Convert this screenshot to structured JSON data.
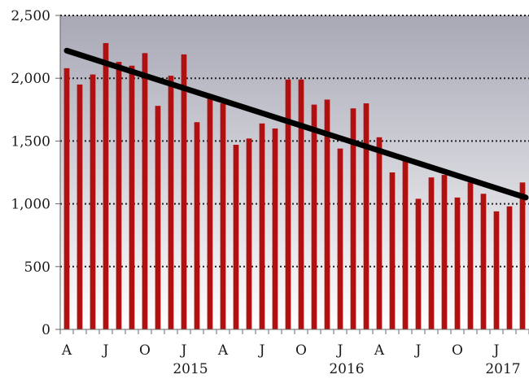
{
  "chart_data": {
    "type": "bar",
    "title": "",
    "xlabel": "",
    "ylabel": "",
    "ylim": [
      0,
      2500
    ],
    "y_ticks": [
      0,
      500,
      1000,
      1500,
      2000,
      2500
    ],
    "y_tick_labels": [
      "0",
      "500",
      "1,000",
      "1,500",
      "2,000",
      "2,500"
    ],
    "grid": "horizontal dotted",
    "background": {
      "top": "#a8a8b6",
      "bottom": "#ffffff"
    },
    "bar_color": "#b01010",
    "trend_color": "#000000",
    "x_tick_labels": [
      {
        "index": 0,
        "label": "A"
      },
      {
        "index": 3,
        "label": "J"
      },
      {
        "index": 6,
        "label": "O"
      },
      {
        "index": 9,
        "label": "J"
      },
      {
        "index": 12,
        "label": "A"
      },
      {
        "index": 15,
        "label": "J"
      },
      {
        "index": 18,
        "label": "O"
      },
      {
        "index": 21,
        "label": "J"
      },
      {
        "index": 24,
        "label": "A"
      },
      {
        "index": 27,
        "label": "J"
      },
      {
        "index": 30,
        "label": "O"
      },
      {
        "index": 33,
        "label": "J"
      }
    ],
    "year_labels": [
      {
        "index": 10,
        "label": "2015"
      },
      {
        "index": 22,
        "label": "2016"
      },
      {
        "index": 34,
        "label": "2017"
      }
    ],
    "series": [
      {
        "values": [
          2080,
          1950,
          2030,
          2280,
          2130,
          2100,
          2200,
          1780,
          2020,
          2190,
          1650,
          1850,
          1800,
          1470,
          1520,
          1640,
          1600,
          1990,
          1990,
          1790,
          1830,
          1440,
          1760,
          1800,
          1530,
          1250,
          1340,
          1040,
          1210,
          1230,
          1050,
          1170,
          1080,
          940,
          980,
          1170
        ]
      }
    ],
    "trend_line": {
      "type": "linear",
      "start_value": 2220,
      "end_value": 1050
    }
  }
}
